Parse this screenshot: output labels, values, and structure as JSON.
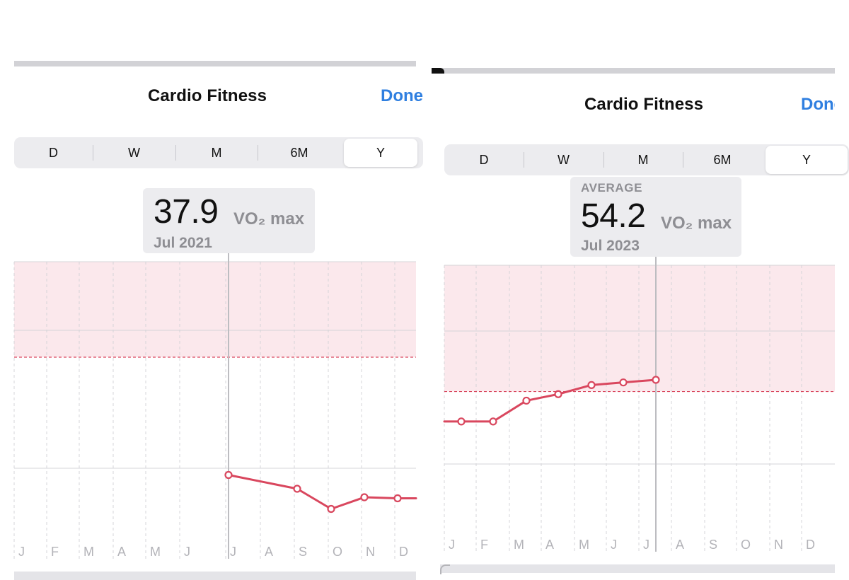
{
  "colors": {
    "accent": "#2f7fe0",
    "series": "#d9475e",
    "zone_fill": "#fbe8ec",
    "gridline": "#d4d4d8",
    "selector_line": "#bdbdc1",
    "label_gray": "#8e8e93",
    "month_gray": "#b3b3b8"
  },
  "screens": {
    "left": {
      "title": "Cardio Fitness",
      "done_label": "Done",
      "segments": [
        {
          "label": "D",
          "selected": false
        },
        {
          "label": "W",
          "selected": false
        },
        {
          "label": "M",
          "selected": false
        },
        {
          "label": "6M",
          "selected": false
        },
        {
          "label": "Y",
          "selected": true
        }
      ],
      "callout": {
        "value": "37.9",
        "unit": "VO₂ max",
        "date": "Jul 2021"
      }
    },
    "right": {
      "title": "Cardio Fitness",
      "done_label": "Done",
      "segments": [
        {
          "label": "D",
          "selected": false
        },
        {
          "label": "W",
          "selected": false
        },
        {
          "label": "M",
          "selected": false
        },
        {
          "label": "6M",
          "selected": false
        },
        {
          "label": "Y",
          "selected": true
        }
      ],
      "callout": {
        "label": "AVERAGE",
        "value": "54.2",
        "unit": "VO₂ max",
        "date": "Jul 2023"
      }
    }
  },
  "chart_data": [
    {
      "type": "line",
      "title": "Cardio Fitness",
      "period": "Y",
      "ylabel": "VO₂ max",
      "ylim": [
        30,
        58
      ],
      "zone_threshold": 49,
      "selected_index": 6,
      "x": [
        "J",
        "F",
        "M",
        "A",
        "M",
        "J",
        "J",
        "A",
        "S",
        "O",
        "N",
        "D"
      ],
      "series": [
        {
          "name": "VO₂ max",
          "values": [
            null,
            null,
            null,
            null,
            null,
            null,
            37.9,
            null,
            36.6,
            34.7,
            35.8,
            35.7
          ],
          "trailing_value": 35.7
        }
      ]
    },
    {
      "type": "line",
      "title": "Cardio Fitness",
      "period": "Y",
      "ylabel": "VO₂ max",
      "ylim": [
        41,
        63
      ],
      "zone_threshold": 53.3,
      "selected_index": 6,
      "x": [
        "J",
        "F",
        "M",
        "A",
        "M",
        "J",
        "J",
        "A",
        "S",
        "O",
        "N",
        "D"
      ],
      "series": [
        {
          "name": "VO₂ max",
          "values": [
            51.0,
            51.0,
            52.6,
            53.1,
            53.8,
            54.0,
            54.2,
            null,
            null,
            null,
            null,
            null
          ],
          "leading_value": 51.0
        }
      ]
    }
  ]
}
